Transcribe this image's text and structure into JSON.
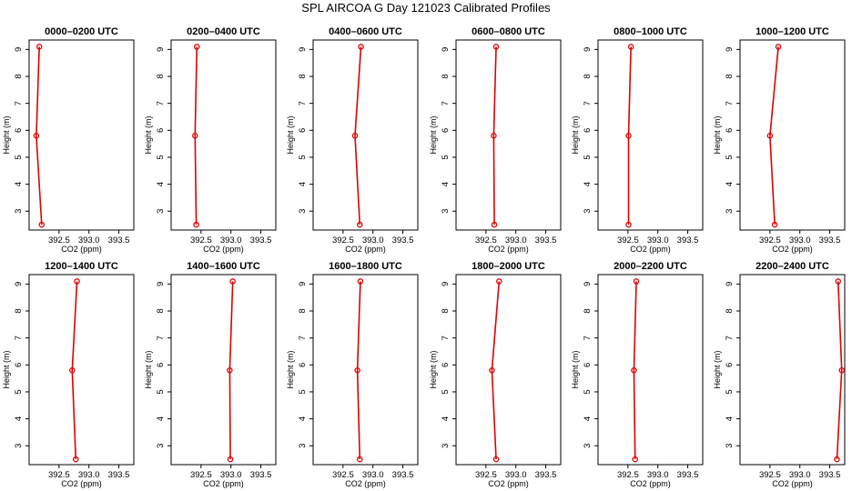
{
  "title": "SPL AIRCOA G  Day 121023  Calibrated Profiles",
  "colors": {
    "profile": "#e00000",
    "axes": "#000000",
    "background": "#ffffff"
  },
  "chart_data": [
    {
      "type": "line",
      "title": "0000–0200 UTC",
      "xlabel": "CO2 (ppm)",
      "ylabel": "Height (m)",
      "xlim": [
        392.0,
        393.75
      ],
      "ylim": [
        2.3,
        9.35
      ],
      "xticks": [
        "392.5",
        "393.0",
        "393.5"
      ],
      "yticks": [
        "3",
        "4",
        "5",
        "6",
        "7",
        "8",
        "9"
      ],
      "series": [
        {
          "x": [
            392.17,
            392.12,
            392.21
          ],
          "y": [
            9.1,
            5.8,
            2.5
          ]
        }
      ]
    },
    {
      "type": "line",
      "title": "0200–0400 UTC",
      "xlabel": "CO2 (ppm)",
      "ylabel": "Height (m)",
      "xlim": [
        392.0,
        393.75
      ],
      "ylim": [
        2.3,
        9.35
      ],
      "xticks": [
        "392.5",
        "393.0",
        "393.5"
      ],
      "yticks": [
        "3",
        "4",
        "5",
        "6",
        "7",
        "8",
        "9"
      ],
      "series": [
        {
          "x": [
            392.43,
            392.4,
            392.42
          ],
          "y": [
            9.1,
            5.8,
            2.5
          ]
        }
      ]
    },
    {
      "type": "line",
      "title": "0400–0600 UTC",
      "xlabel": "CO2 (ppm)",
      "ylabel": "Height (m)",
      "xlim": [
        392.0,
        393.75
      ],
      "ylim": [
        2.3,
        9.35
      ],
      "xticks": [
        "392.5",
        "393.0",
        "393.5"
      ],
      "yticks": [
        "3",
        "4",
        "5",
        "6",
        "7",
        "8",
        "9"
      ],
      "series": [
        {
          "x": [
            392.8,
            392.7,
            392.78
          ],
          "y": [
            9.1,
            5.8,
            2.5
          ]
        }
      ]
    },
    {
      "type": "line",
      "title": "0600–0800 UTC",
      "xlabel": "CO2 (ppm)",
      "ylabel": "Height (m)",
      "xlim": [
        392.0,
        393.75
      ],
      "ylim": [
        2.3,
        9.35
      ],
      "xticks": [
        "392.5",
        "393.0",
        "393.5"
      ],
      "yticks": [
        "3",
        "4",
        "5",
        "6",
        "7",
        "8",
        "9"
      ],
      "series": [
        {
          "x": [
            392.67,
            392.63,
            392.64
          ],
          "y": [
            9.1,
            5.8,
            2.5
          ]
        }
      ]
    },
    {
      "type": "line",
      "title": "0800–1000 UTC",
      "xlabel": "CO2 (ppm)",
      "ylabel": "Height (m)",
      "xlim": [
        392.0,
        393.75
      ],
      "ylim": [
        2.3,
        9.35
      ],
      "xticks": [
        "392.5",
        "393.0",
        "393.5"
      ],
      "yticks": [
        "3",
        "4",
        "5",
        "6",
        "7",
        "8",
        "9"
      ],
      "series": [
        {
          "x": [
            392.55,
            392.51,
            392.51
          ],
          "y": [
            9.1,
            5.8,
            2.5
          ]
        }
      ]
    },
    {
      "type": "line",
      "title": "1000–1200 UTC",
      "xlabel": "CO2 (ppm)",
      "ylabel": "Height (m)",
      "xlim": [
        392.0,
        393.75
      ],
      "ylim": [
        2.3,
        9.35
      ],
      "xticks": [
        "392.5",
        "393.0",
        "393.5"
      ],
      "yticks": [
        "3",
        "4",
        "5",
        "6",
        "7",
        "8",
        "9"
      ],
      "series": [
        {
          "x": [
            392.64,
            392.5,
            392.58
          ],
          "y": [
            9.1,
            5.8,
            2.5
          ]
        }
      ]
    },
    {
      "type": "line",
      "title": "1200–1400 UTC",
      "xlabel": "CO2 (ppm)",
      "ylabel": "Height (m)",
      "xlim": [
        392.0,
        393.75
      ],
      "ylim": [
        2.3,
        9.35
      ],
      "xticks": [
        "392.5",
        "393.0",
        "393.5"
      ],
      "yticks": [
        "3",
        "4",
        "5",
        "6",
        "7",
        "8",
        "9"
      ],
      "series": [
        {
          "x": [
            392.8,
            392.72,
            392.78
          ],
          "y": [
            9.1,
            5.8,
            2.5
          ]
        }
      ]
    },
    {
      "type": "line",
      "title": "1400–1600 UTC",
      "xlabel": "CO2 (ppm)",
      "ylabel": "Height (m)",
      "xlim": [
        392.0,
        393.75
      ],
      "ylim": [
        2.3,
        9.35
      ],
      "xticks": [
        "392.5",
        "393.0",
        "393.5"
      ],
      "yticks": [
        "3",
        "4",
        "5",
        "6",
        "7",
        "8",
        "9"
      ],
      "series": [
        {
          "x": [
            393.03,
            392.98,
            392.99
          ],
          "y": [
            9.1,
            5.8,
            2.5
          ]
        }
      ]
    },
    {
      "type": "line",
      "title": "1600–1800 UTC",
      "xlabel": "CO2 (ppm)",
      "ylabel": "Height (m)",
      "xlim": [
        392.0,
        393.75
      ],
      "ylim": [
        2.3,
        9.35
      ],
      "xticks": [
        "392.5",
        "393.0",
        "393.5"
      ],
      "yticks": [
        "3",
        "4",
        "5",
        "6",
        "7",
        "8",
        "9"
      ],
      "series": [
        {
          "x": [
            392.79,
            392.74,
            392.78
          ],
          "y": [
            9.1,
            5.8,
            2.5
          ]
        }
      ]
    },
    {
      "type": "line",
      "title": "1800–2000 UTC",
      "xlabel": "CO2 (ppm)",
      "ylabel": "Height (m)",
      "xlim": [
        392.0,
        393.75
      ],
      "ylim": [
        2.3,
        9.35
      ],
      "xticks": [
        "392.5",
        "393.0",
        "393.5"
      ],
      "yticks": [
        "3",
        "4",
        "5",
        "6",
        "7",
        "8",
        "9"
      ],
      "series": [
        {
          "x": [
            392.72,
            392.6,
            392.67
          ],
          "y": [
            9.1,
            5.8,
            2.5
          ]
        }
      ]
    },
    {
      "type": "line",
      "title": "2000–2200 UTC",
      "xlabel": "CO2 (ppm)",
      "ylabel": "Height (m)",
      "xlim": [
        392.0,
        393.75
      ],
      "ylim": [
        2.3,
        9.35
      ],
      "xticks": [
        "392.5",
        "393.0",
        "393.5"
      ],
      "yticks": [
        "3",
        "4",
        "5",
        "6",
        "7",
        "8",
        "9"
      ],
      "series": [
        {
          "x": [
            392.64,
            392.6,
            392.62
          ],
          "y": [
            9.1,
            5.8,
            2.5
          ]
        }
      ]
    },
    {
      "type": "line",
      "title": "2200–2400 UTC",
      "xlabel": "CO2 (ppm)",
      "ylabel": "Height (m)",
      "xlim": [
        392.0,
        393.75
      ],
      "ylim": [
        2.3,
        9.35
      ],
      "xticks": [
        "392.5",
        "393.0",
        "393.5"
      ],
      "yticks": [
        "3",
        "4",
        "5",
        "6",
        "7",
        "8",
        "9"
      ],
      "series": [
        {
          "x": [
            393.64,
            393.7,
            393.62
          ],
          "y": [
            9.1,
            5.8,
            2.5
          ]
        }
      ]
    }
  ]
}
